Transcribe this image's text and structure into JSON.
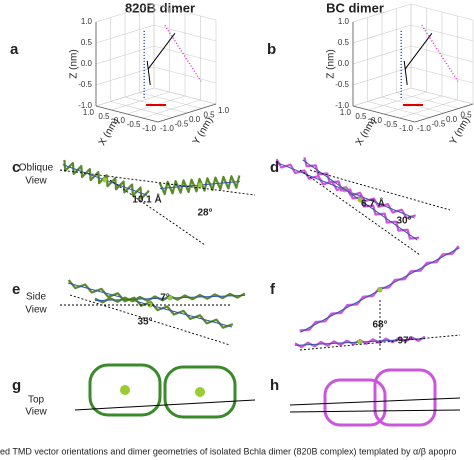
{
  "columns": [
    "820B dimer",
    "BC dimer"
  ],
  "plots": [
    {
      "letter": "a",
      "z_label": "Z (nm)",
      "x_label": "X (nm)",
      "y_label": "Y (nm)",
      "z_ticks": [
        "1.0",
        "0.5",
        "0.0",
        "-0.5",
        "-1.0"
      ],
      "x_ticks": [
        "1.0",
        "0.5",
        "0.0",
        "-0.5",
        "-1.0"
      ],
      "y_ticks": [
        "-1.0",
        "-0.5",
        "0.0",
        "0.5",
        "1.0"
      ]
    },
    {
      "letter": "b",
      "z_label": "Z (nm)",
      "x_label": "X (nm)",
      "y_label": "Y (nm)",
      "z_ticks": [
        "1.0",
        "0.5",
        "0.0",
        "-0.5",
        "-1.0"
      ],
      "x_ticks": [
        "1.0",
        "0.5",
        "0.0",
        "-0.5",
        "-1.0"
      ],
      "y_ticks": [
        "-1.0",
        "-0.5",
        "0.0",
        "0.5",
        "1.0"
      ]
    }
  ],
  "views": [
    [
      "Oblique",
      "View"
    ],
    [
      "Side",
      "View"
    ],
    [
      "Top",
      "View"
    ]
  ],
  "panels": [
    {
      "letter": "c",
      "labels": [
        "10.1 Å",
        "28°"
      ]
    },
    {
      "letter": "d",
      "labels": [
        "6.7 Å",
        "30°"
      ]
    },
    {
      "letter": "e",
      "labels": [
        "7°",
        "35°"
      ]
    },
    {
      "letter": "f",
      "labels": [
        "68°",
        "97°"
      ]
    },
    {
      "letter": "g",
      "labels": []
    },
    {
      "letter": "h",
      "labels": []
    }
  ],
  "caption": "ed TMD vector orientations and dimer geometries of isolated Bchla dimer (820B complex) templated by α/β apopro"
}
